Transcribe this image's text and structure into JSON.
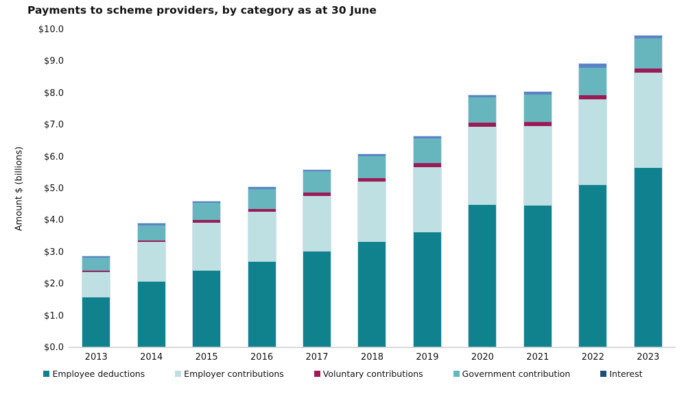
{
  "title": "Payments to scheme providers, by category as at 30 June",
  "ylabel": "Amount $ (billions)",
  "chart_data": {
    "type": "bar",
    "stacked": true,
    "title": "Payments to scheme providers, by category as at 30 June",
    "xlabel": "",
    "ylabel": "Amount $ (billions)",
    "categories": [
      "2013",
      "2014",
      "2015",
      "2016",
      "2017",
      "2018",
      "2019",
      "2020",
      "2021",
      "2022",
      "2023"
    ],
    "series": [
      {
        "name": "Employee deductions",
        "color": "#0f828e",
        "legend_color": "#0f828e",
        "values": [
          1.55,
          2.05,
          2.4,
          2.67,
          3.0,
          3.3,
          3.6,
          4.47,
          4.43,
          5.08,
          5.62
        ]
      },
      {
        "name": "Employer contributions",
        "color": "#bfe0e2",
        "legend_color": "#bfe0e2",
        "values": [
          0.8,
          1.25,
          1.5,
          1.57,
          1.75,
          1.9,
          2.05,
          2.45,
          2.5,
          2.7,
          3.0
        ]
      },
      {
        "name": "Voluntary contributions",
        "color": "#9b1b57",
        "legend_color": "#9b1b57",
        "values": [
          0.05,
          0.05,
          0.08,
          0.1,
          0.1,
          0.1,
          0.12,
          0.12,
          0.15,
          0.12,
          0.12
        ]
      },
      {
        "name": "Government contribution",
        "color": "#67b6bd",
        "legend_color": "#67b6bd",
        "values": [
          0.4,
          0.47,
          0.55,
          0.62,
          0.66,
          0.7,
          0.78,
          0.8,
          0.85,
          0.88,
          0.95
        ]
      },
      {
        "name": "Interest",
        "color": "#5b84c4",
        "legend_color": "#1f4e79",
        "values": [
          0.05,
          0.05,
          0.05,
          0.06,
          0.06,
          0.06,
          0.07,
          0.08,
          0.08,
          0.12,
          0.1
        ]
      }
    ],
    "ylim": [
      0,
      10
    ],
    "yticks": [
      "$0.0",
      "$1.0",
      "$2.0",
      "$3.0",
      "$4.0",
      "$5.0",
      "$6.0",
      "$7.0",
      "$8.0",
      "$9.0",
      "$10.0"
    ],
    "grid": false,
    "legend_position": "bottom"
  }
}
